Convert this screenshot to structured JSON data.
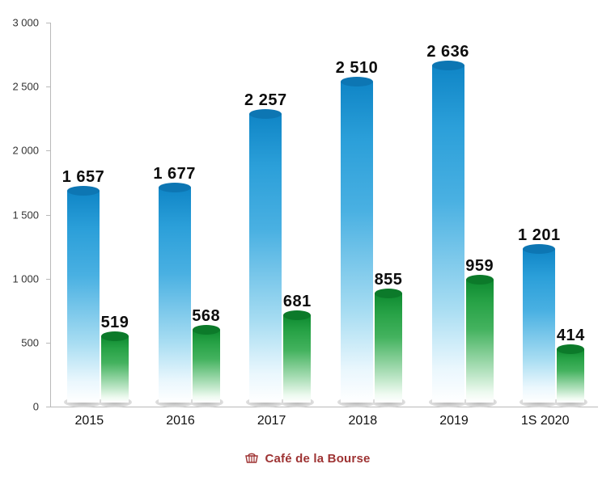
{
  "chart_data": {
    "type": "bar",
    "title": "",
    "categories": [
      "2015",
      "2016",
      "2017",
      "2018",
      "2019",
      "1S 2020"
    ],
    "series": [
      {
        "name": "blue-series",
        "color": "#2196d3",
        "values": [
          1657,
          1677,
          2257,
          2510,
          2636,
          1201
        ],
        "labels": [
          "1 657",
          "1 677",
          "2 257",
          "2 510",
          "2 636",
          "1 201"
        ]
      },
      {
        "name": "green-series",
        "color": "#22a03f",
        "values": [
          519,
          568,
          681,
          855,
          959,
          414
        ],
        "labels": [
          "519",
          "568",
          "681",
          "855",
          "959",
          "414"
        ]
      }
    ],
    "ylim": [
      0,
      3000
    ],
    "yticks": [
      {
        "value": 3000,
        "label": "3 000"
      },
      {
        "value": 2500,
        "label": "2 500"
      },
      {
        "value": 2000,
        "label": "2 000"
      },
      {
        "value": 1500,
        "label": "1 500"
      },
      {
        "value": 1000,
        "label": "1 000"
      },
      {
        "value": 500,
        "label": "500"
      },
      {
        "value": 0,
        "label": "0"
      }
    ],
    "grid": false,
    "legend": "none",
    "bar_style": "3d-cylinder-gradient"
  },
  "footer": {
    "logo_text": "Café de la Bourse",
    "logo_color": "#9e3333"
  }
}
